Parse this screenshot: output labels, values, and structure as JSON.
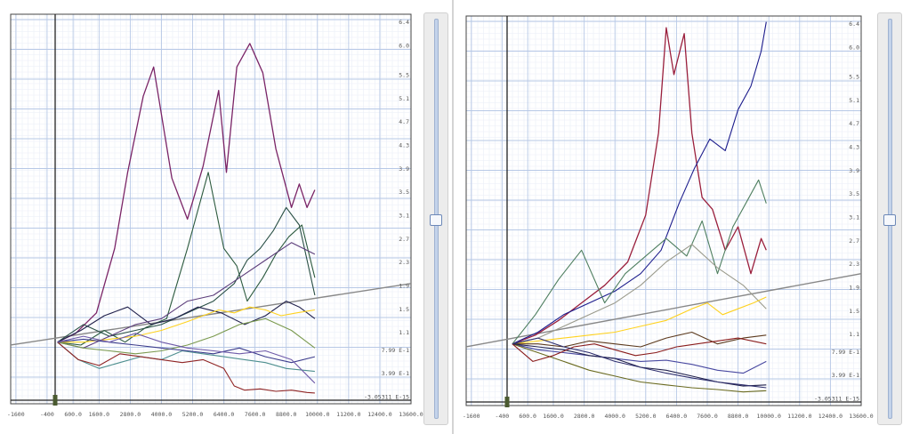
{
  "chart_data": [
    {
      "type": "line",
      "title": "",
      "xlabel": "",
      "ylabel": "",
      "xlim": [
        -1800,
        13600
      ],
      "ylim": [
        -0.0531,
        6.6
      ],
      "grid": true,
      "x_ticks": [
        "-1600",
        "-400",
        "600.0",
        "1600.0",
        "2800.0",
        "4000.0",
        "5200.0",
        "6400.0",
        "7600.0",
        "8800.0",
        "10000.0",
        "11200.0",
        "12400.0",
        "13600.0"
      ],
      "x_tick_values": [
        -1600,
        -400,
        600,
        1600,
        2800,
        4000,
        5200,
        6400,
        7600,
        8800,
        10000,
        11200,
        12400,
        13600
      ],
      "y_ticks": [
        "-3.05311 E-15",
        "3.99 E-1",
        "7.99 E-1",
        "1.1",
        "1.5",
        "1.9",
        "2.3",
        "2.7",
        "3.1",
        "3.5",
        "3.9",
        "4.3",
        "4.7",
        "5.1",
        "5.5",
        "6.0",
        "6.4"
      ],
      "y_tick_values": [
        0,
        0.399,
        0.799,
        1.1,
        1.5,
        1.9,
        2.3,
        2.7,
        3.1,
        3.5,
        3.9,
        4.3,
        4.7,
        5.1,
        5.5,
        6.0,
        6.4
      ],
      "trend": {
        "x": [
          -1800,
          13600
        ],
        "y": [
          0.95,
          2.0
        ]
      },
      "series": [
        {
          "color": "#7a2466",
          "x": [
            0,
            700,
            1500,
            2200,
            2700,
            3300,
            3700,
            4400,
            5000,
            5600,
            6200,
            6500,
            6900,
            7400,
            7900,
            8400,
            9000,
            9300,
            9600,
            9900
          ],
          "y": [
            1.0,
            1.15,
            1.5,
            2.6,
            3.9,
            5.2,
            5.7,
            3.8,
            3.1,
            4.0,
            5.3,
            3.9,
            5.7,
            6.1,
            5.6,
            4.3,
            3.3,
            3.7,
            3.3,
            3.6
          ]
        },
        {
          "color": "#2c5a3e",
          "x": [
            0,
            900,
            1800,
            2600,
            3400,
            4200,
            5000,
            5800,
            6400,
            6900,
            7300,
            7900,
            8400,
            8900,
            9400,
            9900
          ],
          "y": [
            1.0,
            0.95,
            1.2,
            1.0,
            1.25,
            1.4,
            2.6,
            3.9,
            2.6,
            2.3,
            1.7,
            2.1,
            2.5,
            2.8,
            3.0,
            2.1
          ]
        },
        {
          "color": "#294f45",
          "x": [
            0,
            1000,
            2000,
            3000,
            4000,
            5000,
            6000,
            6800,
            7300,
            7800,
            8300,
            8800,
            9300,
            9900
          ],
          "y": [
            1.0,
            1.3,
            1.1,
            1.2,
            1.3,
            1.5,
            1.7,
            2.0,
            2.4,
            2.6,
            2.9,
            3.3,
            3.0,
            1.8
          ]
        },
        {
          "color": "#22224d",
          "x": [
            0,
            900,
            1800,
            2700,
            3600,
            4500,
            5400,
            6300,
            7200,
            8000,
            8800,
            9300,
            9900
          ],
          "y": [
            1.0,
            1.2,
            1.45,
            1.6,
            1.3,
            1.4,
            1.6,
            1.5,
            1.3,
            1.45,
            1.7,
            1.6,
            1.4
          ]
        },
        {
          "color": "#5c3d7a",
          "x": [
            0,
            1000,
            2000,
            3000,
            4000,
            5000,
            6000,
            7000,
            8000,
            9000,
            9900
          ],
          "y": [
            1.0,
            0.9,
            1.1,
            1.3,
            1.4,
            1.7,
            1.8,
            2.1,
            2.4,
            2.7,
            2.5
          ]
        },
        {
          "color": "#ffd21f",
          "x": [
            0,
            1000,
            2000,
            3000,
            4000,
            5000,
            5600,
            6200,
            6800,
            7400,
            8000,
            8600,
            9200,
            9900
          ],
          "y": [
            1.0,
            1.0,
            1.05,
            1.1,
            1.2,
            1.35,
            1.45,
            1.55,
            1.5,
            1.6,
            1.55,
            1.45,
            1.5,
            1.55
          ]
        },
        {
          "color": "#7b9a4f",
          "x": [
            0,
            1000,
            2000,
            3000,
            4000,
            5000,
            6000,
            7000,
            8000,
            9000,
            9900
          ],
          "y": [
            1.0,
            0.9,
            0.85,
            0.8,
            0.85,
            0.95,
            1.1,
            1.3,
            1.4,
            1.2,
            0.9
          ]
        },
        {
          "color": "#4e8f8f",
          "x": [
            0,
            800,
            1600,
            2400,
            3200,
            4000,
            4800,
            5600,
            6400,
            7200,
            8000,
            8800,
            9900
          ],
          "y": [
            1.0,
            0.7,
            0.55,
            0.65,
            0.75,
            0.7,
            0.85,
            0.8,
            0.75,
            0.7,
            0.65,
            0.55,
            0.5
          ]
        },
        {
          "color": "#8f2424",
          "x": [
            0,
            800,
            1600,
            2400,
            3200,
            4000,
            4800,
            5600,
            6400,
            6800,
            7200,
            7800,
            8400,
            9000,
            9600,
            9900
          ],
          "y": [
            1.0,
            0.7,
            0.6,
            0.8,
            0.75,
            0.7,
            0.65,
            0.7,
            0.55,
            0.25,
            0.18,
            0.2,
            0.16,
            0.18,
            0.14,
            0.13
          ]
        },
        {
          "color": "#3c3c8c",
          "x": [
            0,
            1000,
            2000,
            3000,
            4000,
            5000,
            6000,
            7000,
            8000,
            9000,
            9900
          ],
          "y": [
            1.0,
            1.05,
            1.0,
            0.95,
            0.9,
            0.85,
            0.8,
            0.9,
            0.75,
            0.65,
            0.75
          ]
        },
        {
          "color": "#6e5aa8",
          "x": [
            0,
            1000,
            2000,
            3000,
            4000,
            5000,
            6000,
            7000,
            8000,
            9000,
            9900
          ],
          "y": [
            1.0,
            1.1,
            1.0,
            1.15,
            1.0,
            0.9,
            0.85,
            0.8,
            0.85,
            0.7,
            0.3
          ]
        }
      ]
    },
    {
      "type": "line",
      "title": "",
      "xlabel": "",
      "ylabel": "",
      "xlim": [
        -1800,
        13600
      ],
      "ylim": [
        -0.0531,
        6.6
      ],
      "grid": true,
      "x_ticks": [
        "-1600",
        "-400",
        "600.0",
        "1600.0",
        "2800.0",
        "4000.0",
        "5200.0",
        "6400.0",
        "7600.0",
        "8800.0",
        "10000.0",
        "11200.0",
        "12400.0",
        "13600.0"
      ],
      "x_tick_values": [
        -1600,
        -400,
        600,
        1600,
        2800,
        4000,
        5200,
        6400,
        7600,
        8800,
        10000,
        11200,
        12400,
        13600
      ],
      "y_ticks": [
        "-3.05311 E-15",
        "3.99 E-1",
        "7.99 E-1",
        "1.1",
        "1.5",
        "1.9",
        "2.3",
        "2.7",
        "3.1",
        "3.5",
        "3.9",
        "4.3",
        "4.7",
        "5.1",
        "5.5",
        "6.0",
        "6.4"
      ],
      "y_tick_values": [
        0,
        0.399,
        0.799,
        1.1,
        1.5,
        1.9,
        2.3,
        2.7,
        3.1,
        3.5,
        3.9,
        4.3,
        4.7,
        5.1,
        5.5,
        6.0,
        6.4
      ],
      "trend": {
        "x": [
          -1800,
          13600
        ],
        "y": [
          0.95,
          2.2
        ]
      },
      "series": [
        {
          "color": "#9a1f3c",
          "x": [
            0,
            900,
            1800,
            2700,
            3600,
            4500,
            5200,
            5700,
            6000,
            6300,
            6700,
            7000,
            7400,
            7800,
            8300,
            8800,
            9300,
            9700,
            9900
          ],
          "y": [
            1.0,
            1.15,
            1.4,
            1.7,
            2.0,
            2.4,
            3.2,
            4.6,
            6.4,
            5.6,
            6.3,
            4.6,
            3.5,
            3.3,
            2.6,
            3.0,
            2.2,
            2.8,
            2.6
          ]
        },
        {
          "color": "#1c1c8c",
          "x": [
            0,
            1000,
            2000,
            3000,
            4000,
            5000,
            5800,
            6500,
            7100,
            7700,
            8300,
            8800,
            9300,
            9700,
            9900
          ],
          "y": [
            1.0,
            1.2,
            1.5,
            1.7,
            1.9,
            2.2,
            2.6,
            3.4,
            4.0,
            4.5,
            4.3,
            5.0,
            5.4,
            6.0,
            6.5
          ]
        },
        {
          "color": "#4f7f60",
          "x": [
            0,
            900,
            1800,
            2700,
            3600,
            4400,
            5200,
            6000,
            6800,
            7400,
            8000,
            8600,
            9100,
            9600,
            9900
          ],
          "y": [
            1.0,
            1.5,
            2.1,
            2.6,
            1.7,
            2.2,
            2.5,
            2.8,
            2.5,
            3.1,
            2.2,
            3.0,
            3.4,
            3.8,
            3.4
          ]
        },
        {
          "color": "#9a9a8c",
          "x": [
            0,
            1000,
            2000,
            3000,
            4000,
            5000,
            6000,
            7000,
            8000,
            9000,
            9900
          ],
          "y": [
            1.0,
            1.1,
            1.3,
            1.5,
            1.7,
            2.0,
            2.4,
            2.7,
            2.3,
            2.0,
            1.6
          ]
        },
        {
          "color": "#ffd21f",
          "x": [
            0,
            1000,
            2000,
            3000,
            4000,
            5000,
            6000,
            7000,
            7600,
            8200,
            8800,
            9400,
            9900
          ],
          "y": [
            1.0,
            1.05,
            1.1,
            1.15,
            1.2,
            1.3,
            1.4,
            1.6,
            1.7,
            1.5,
            1.6,
            1.7,
            1.8
          ]
        },
        {
          "color": "#5c3a1e",
          "x": [
            0,
            1000,
            2000,
            3000,
            4000,
            5000,
            6000,
            7000,
            8000,
            9000,
            9900
          ],
          "y": [
            1.0,
            1.0,
            0.95,
            1.05,
            1.0,
            0.95,
            1.1,
            1.2,
            1.0,
            1.1,
            1.15
          ]
        },
        {
          "color": "#4848a0",
          "x": [
            0,
            1000,
            2000,
            3000,
            4000,
            5000,
            6000,
            7000,
            8000,
            9000,
            9900
          ],
          "y": [
            1.0,
            0.9,
            0.85,
            0.8,
            0.75,
            0.7,
            0.72,
            0.65,
            0.55,
            0.5,
            0.7
          ]
        },
        {
          "color": "#6a6a20",
          "x": [
            0,
            1000,
            2000,
            3000,
            4000,
            5000,
            6000,
            7000,
            8000,
            9000,
            9900
          ],
          "y": [
            1.0,
            0.85,
            0.7,
            0.55,
            0.45,
            0.35,
            0.3,
            0.25,
            0.22,
            0.18,
            0.2
          ]
        },
        {
          "color": "#22224d",
          "x": [
            0,
            1000,
            2000,
            3000,
            4000,
            5000,
            6000,
            7000,
            8000,
            9000,
            9900
          ],
          "y": [
            1.0,
            0.95,
            0.9,
            0.8,
            0.75,
            0.6,
            0.55,
            0.45,
            0.35,
            0.28,
            0.3
          ]
        },
        {
          "color": "#8a1c1c",
          "x": [
            0,
            800,
            1600,
            2400,
            3200,
            4000,
            4800,
            5600,
            6400,
            7200,
            8000,
            8800,
            9900
          ],
          "y": [
            1.0,
            0.7,
            0.8,
            0.95,
            1.0,
            0.9,
            0.8,
            0.85,
            0.95,
            1.0,
            1.05,
            1.1,
            1.0
          ]
        },
        {
          "color": "#2f2f6e",
          "x": [
            0,
            1000,
            2000,
            3000,
            4000,
            5000,
            6000,
            7000,
            8000,
            9000,
            9900
          ],
          "y": [
            1.0,
            1.1,
            0.95,
            0.85,
            0.7,
            0.6,
            0.5,
            0.42,
            0.35,
            0.3,
            0.25
          ]
        }
      ]
    }
  ],
  "sliders": [
    {
      "value": 0.5
    },
    {
      "value": 0.5
    }
  ]
}
